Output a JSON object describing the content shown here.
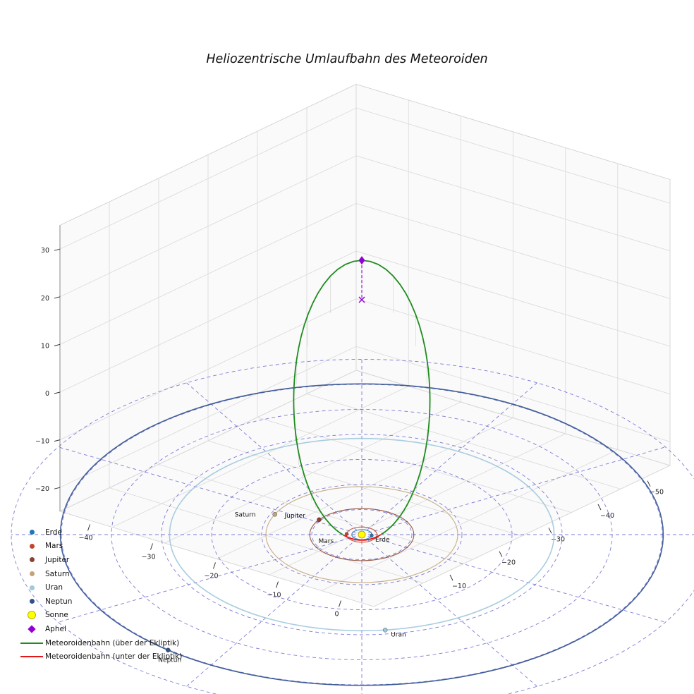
{
  "chart_data": {
    "type": "line",
    "subtype": "3d-heliocentric-orbit-plot",
    "title": "Heliozentrische Umlaufbahn des Meteoroiden",
    "view": {
      "elevation_deg": 30,
      "azimuth_deg": -60
    },
    "axes": {
      "x_ticks": [
        -40,
        -30,
        -20,
        -10,
        0
      ],
      "y_ticks": [
        -50,
        -40,
        -30,
        -20,
        -10
      ],
      "z_ticks": [
        30,
        20,
        10,
        0,
        -10,
        -20
      ],
      "x_range": [
        -45,
        5
      ],
      "y_range": [
        -55,
        5
      ],
      "z_range": [
        -25,
        35
      ],
      "grid": true,
      "pane_color": "#f5f5f5",
      "grid_color": "#d9d9d9"
    },
    "ecliptic_grid": {
      "style": "dashed",
      "color": "#4646c8",
      "circle_radii_au": [
        5,
        10,
        15,
        20,
        25,
        30,
        35
      ],
      "spoke_step_deg": 30
    },
    "sun": {
      "name": "Sonne",
      "color": "#ffff00",
      "edge_color": "#b8860b"
    },
    "planets": [
      {
        "name": "Erde",
        "orbit_radius_au": 1.0,
        "position_angle_deg": 20,
        "color": "#1f77b4",
        "label_in_plot": true
      },
      {
        "name": "Mars",
        "orbit_radius_au": 1.52,
        "position_angle_deg": 205,
        "color": "#c0452b",
        "label_in_plot": true
      },
      {
        "name": "Jupiter",
        "orbit_radius_au": 5.2,
        "position_angle_deg": 175,
        "color": "#8b4030",
        "label_in_plot": true
      },
      {
        "name": "Saturn",
        "orbit_radius_au": 9.58,
        "position_angle_deg": 185,
        "color": "#c2a47a",
        "label_in_plot": true
      },
      {
        "name": "Uran",
        "orbit_radius_au": 19.2,
        "position_angle_deg": -53,
        "color": "#9fc8dc",
        "label_in_plot": true
      },
      {
        "name": "Neptun",
        "orbit_radius_au": 30.1,
        "position_angle_deg": -100,
        "color": "#31508e",
        "label_in_plot": true
      }
    ],
    "meteoroid": {
      "semi_major_axis_au": 24.3,
      "eccentricity": 0.96,
      "inclination_deg": 10,
      "ascending_node_deg": 30,
      "arg_perihelion_deg": 270,
      "aphelion_distance_au": 47.6,
      "above_label": "Meteoroidenbahn (über der Ekliptik)",
      "below_label": "Meteoroidenbahn (unter der Ekliptik)",
      "above_color": "#1e8c1e",
      "below_color": "#e01818",
      "aphel_label": "Aphel",
      "aphel_color": "#9400d3",
      "aphel_marker": "diamond",
      "aphel_projection_marker": "x",
      "stem_color": "#c8c8c8"
    },
    "legend": {
      "position": "lower-left",
      "items": [
        {
          "label": "Erde",
          "marker": "dot",
          "color": "#1f77b4"
        },
        {
          "label": "Mars",
          "marker": "dot",
          "color": "#c0452b"
        },
        {
          "label": "Jupiter",
          "marker": "dot",
          "color": "#8b4030"
        },
        {
          "label": "Saturn",
          "marker": "dot",
          "color": "#c2a47a"
        },
        {
          "label": "Uran",
          "marker": "dot",
          "color": "#9fc8dc"
        },
        {
          "label": "Neptun",
          "marker": "dot",
          "color": "#31508e"
        },
        {
          "label": "Sonne",
          "marker": "circle-large",
          "color": "#ffff00",
          "edge": "#b8b800"
        },
        {
          "label": "Aphel",
          "marker": "diamond",
          "color": "#9400d3"
        },
        {
          "label": "Meteoroidenbahn (über der Ekliptik)",
          "marker": "line",
          "color": "#1e8c1e"
        },
        {
          "label": "Meteoroidenbahn (unter der Ekliptik)",
          "marker": "line",
          "color": "#e01818"
        }
      ]
    }
  }
}
